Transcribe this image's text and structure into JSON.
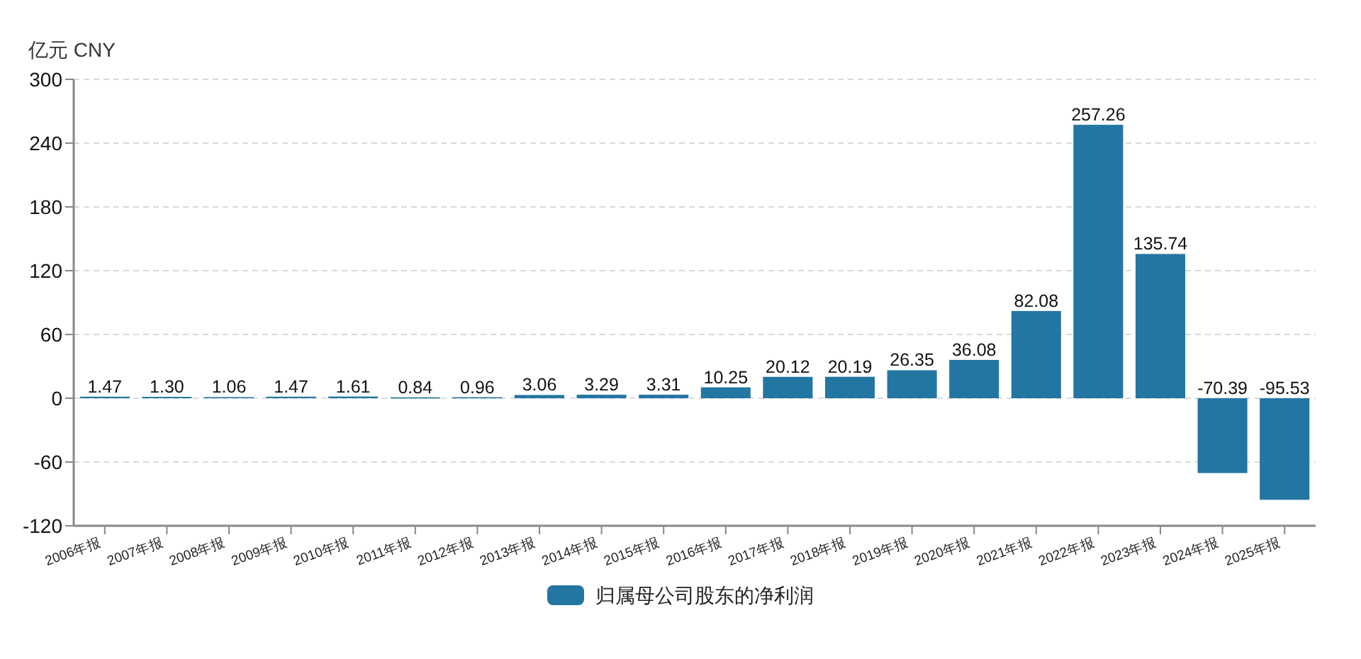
{
  "chart_data": {
    "type": "bar",
    "ylabel": "亿元  CNY",
    "categories": [
      "2006年报",
      "2007年报",
      "2008年报",
      "2009年报",
      "2010年报",
      "2011年报",
      "2012年报",
      "2013年报",
      "2014年报",
      "2015年报",
      "2016年报",
      "2017年报",
      "2018年报",
      "2019年报",
      "2020年报",
      "2021年报",
      "2022年报",
      "2023年报",
      "2024年报",
      "2025年报"
    ],
    "series": [
      {
        "name": "归属母公司股东的净利润",
        "color": "#2476a2",
        "values": [
          1.47,
          1.3,
          1.06,
          1.47,
          1.61,
          0.84,
          0.96,
          3.06,
          3.29,
          3.31,
          10.25,
          20.12,
          20.19,
          26.35,
          36.08,
          82.08,
          257.26,
          135.74,
          -70.39,
          -95.53
        ],
        "value_labels": [
          "1.47",
          "1.30",
          "1.06",
          "1.47",
          "1.61",
          "0.84",
          "0.96",
          "3.06",
          "3.29",
          "3.31",
          "10.25",
          "20.12",
          "20.19",
          "26.35",
          "36.08",
          "82.08",
          "257.26",
          "135.74",
          "-70.39",
          "-95.53"
        ]
      }
    ],
    "ylim": [
      -120,
      300
    ],
    "yticks": [
      -120,
      -60,
      0,
      60,
      120,
      180,
      240,
      300
    ],
    "grid": "y",
    "legend": "bottom"
  }
}
